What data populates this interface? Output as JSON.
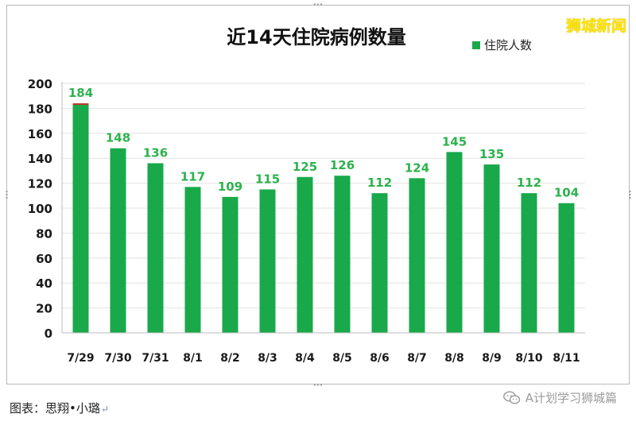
{
  "watermark": "狮城新闻",
  "caption": "图表：思翔•小璐",
  "caption_mark": "↵",
  "brand": "A计划学习狮城篇",
  "brand_icon": "wechat-icon",
  "colors": {
    "bar": "#19a94a",
    "label": "#2db24d",
    "grid": "#e2e2e2",
    "axis_text": "#1a1a1a",
    "top_segment": "#c0392b"
  },
  "chart_data": {
    "type": "bar",
    "title": "近14天住院病例数量",
    "categories": [
      "7/29",
      "7/30",
      "7/31",
      "8/1",
      "8/2",
      "8/3",
      "8/4",
      "8/5",
      "8/6",
      "8/7",
      "8/8",
      "8/9",
      "8/10",
      "8/11"
    ],
    "series": [
      {
        "name": "住院人数",
        "values": [
          184,
          148,
          136,
          117,
          109,
          115,
          125,
          126,
          112,
          124,
          145,
          135,
          112,
          104
        ]
      }
    ],
    "yticks": [
      0,
      20,
      40,
      60,
      80,
      100,
      120,
      140,
      160,
      180,
      200
    ],
    "ylim": [
      0,
      200
    ],
    "grid": true,
    "legend": "top-right",
    "xlabel": "",
    "ylabel": ""
  }
}
